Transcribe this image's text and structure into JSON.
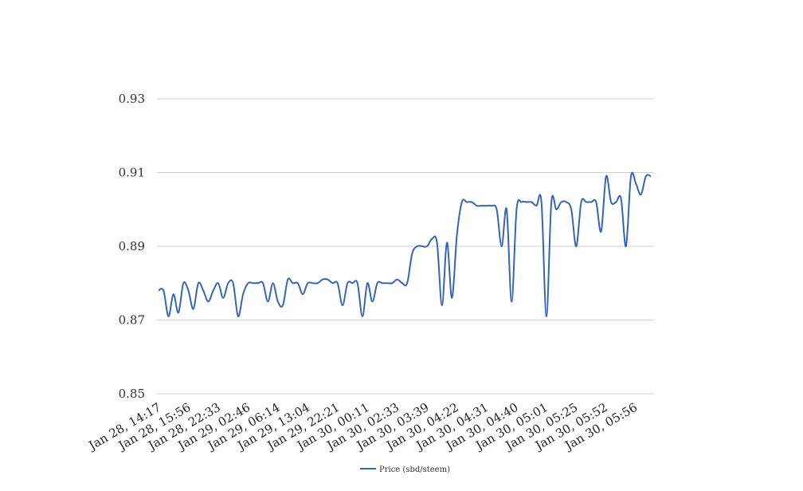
{
  "chart_data": {
    "type": "line",
    "title": "",
    "xlabel": "",
    "ylabel": "",
    "ylim": [
      0.85,
      0.93
    ],
    "yticks": [
      "0.85",
      "0.87",
      "0.89",
      "0.91",
      "0.93"
    ],
    "xticks": [
      "Jan 28, 14:17",
      "Jan 28, 15:56",
      "Jan 28, 22:33",
      "Jan 29, 02:46",
      "Jan 29, 06:14",
      "Jan 29, 13:04",
      "Jan 29, 22:21",
      "Jan 30, 00:11",
      "Jan 30, 02:33",
      "Jan 30, 03:39",
      "Jan 30, 04:22",
      "Jan 30, 04:31",
      "Jan 30, 04:40",
      "Jan 30, 05:01",
      "Jan 30, 05:25",
      "Jan 30, 05:52",
      "Jan 30, 05:56"
    ],
    "grid": true,
    "legend_position": "bottom",
    "series": [
      {
        "name": "Price (sbd/steem)",
        "color": "#3565b5",
        "values": [
          0.878,
          0.878,
          0.871,
          0.877,
          0.872,
          0.88,
          0.878,
          0.873,
          0.88,
          0.878,
          0.875,
          0.878,
          0.88,
          0.876,
          0.88,
          0.88,
          0.871,
          0.877,
          0.88,
          0.88,
          0.88,
          0.88,
          0.875,
          0.88,
          0.875,
          0.874,
          0.881,
          0.88,
          0.88,
          0.877,
          0.88,
          0.88,
          0.88,
          0.881,
          0.881,
          0.88,
          0.88,
          0.874,
          0.88,
          0.88,
          0.88,
          0.871,
          0.88,
          0.875,
          0.88,
          0.88,
          0.88,
          0.88,
          0.881,
          0.88,
          0.88,
          0.888,
          0.89,
          0.89,
          0.89,
          0.892,
          0.891,
          0.874,
          0.891,
          0.876,
          0.893,
          0.902,
          0.902,
          0.902,
          0.901,
          0.901,
          0.901,
          0.901,
          0.9,
          0.89,
          0.9,
          0.875,
          0.9,
          0.902,
          0.902,
          0.902,
          0.901,
          0.902,
          0.871,
          0.902,
          0.9,
          0.902,
          0.902,
          0.9,
          0.89,
          0.902,
          0.902,
          0.902,
          0.902,
          0.894,
          0.909,
          0.902,
          0.902,
          0.903,
          0.89,
          0.909,
          0.907,
          0.904,
          0.909,
          0.909
        ]
      }
    ]
  }
}
